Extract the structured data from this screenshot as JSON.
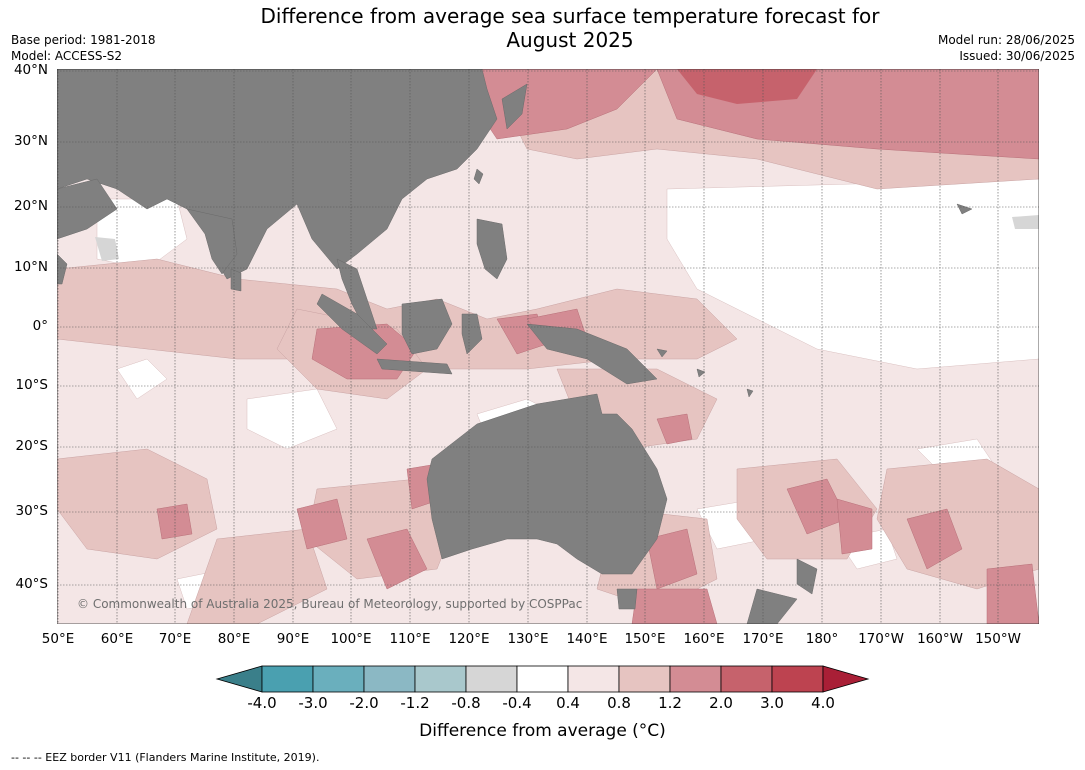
{
  "title": "Difference from average sea surface temperature forecast for\nAugust 2025",
  "base_period": "Base period: 1981-2018",
  "model": "Model: ACCESS-S2",
  "model_run": "Model run: 28/06/2025",
  "issued": "Issued: 30/06/2025",
  "copyright": "© Commonwealth of Australia 2025, Bureau of Meteorology, supported by COSPPac",
  "footnote": "--  --  -- EEZ border V11 (Flanders Marine Institute, 2019).",
  "map": {
    "lat_labels": [
      "40°N",
      "30°N",
      "20°N",
      "10°N",
      "0°",
      "10°S",
      "20°S",
      "30°S",
      "40°S"
    ],
    "lon_labels": [
      "50°E",
      "60°E",
      "70°E",
      "80°E",
      "90°E",
      "100°E",
      "110°E",
      "120°E",
      "130°E",
      "140°E",
      "150°E",
      "160°E",
      "170°E",
      "180°",
      "170°W",
      "160°W",
      "150°W"
    ],
    "land_color": "#808080",
    "ocean_base_color": "#f4e6e6"
  },
  "legend": {
    "label": "Difference from average (°C)",
    "ticks": [
      "-4.0",
      "-3.0",
      "-2.0",
      "-1.2",
      "-0.8",
      "-0.4",
      "0.4",
      "0.8",
      "1.2",
      "2.0",
      "3.0",
      "4.0"
    ],
    "colors": [
      "#3a7f8a",
      "#4aa0b0",
      "#6aafbd",
      "#8bb8c4",
      "#a9c8cc",
      "#d6d6d6",
      "#ffffff",
      "#f4e6e6",
      "#e6c4c1",
      "#d38c94",
      "#c6626c",
      "#bd4350",
      "#a91f36"
    ]
  }
}
